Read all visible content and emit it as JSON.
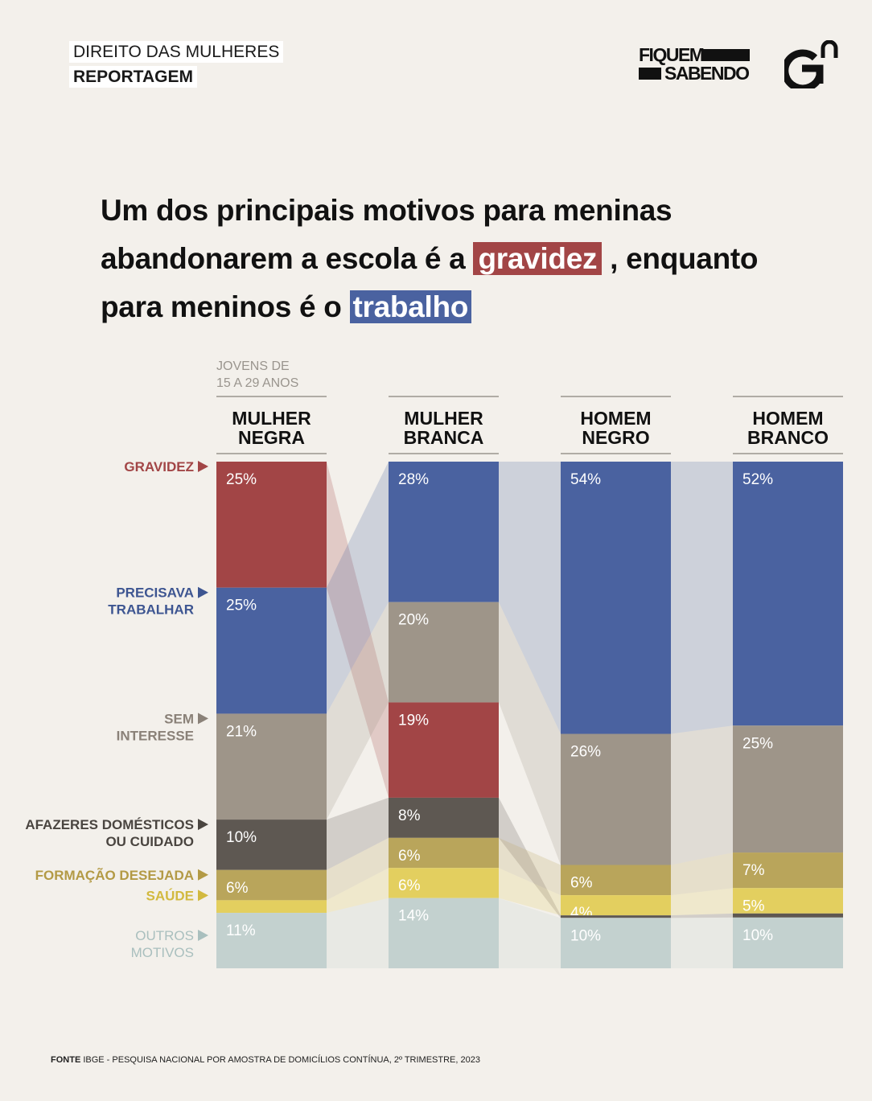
{
  "header": {
    "section": "DIREITO DAS MULHERES",
    "type": "REPORTAGEM",
    "brand_line1": "FIQUEM",
    "brand_line2": "SABENDO"
  },
  "headline": {
    "part1": "Um dos principais motivos para meninas abandonarem a escola é a",
    "highlight1": "gravidez",
    "part2": " , enquanto para meninos é o",
    "highlight2": "trabalho"
  },
  "source": {
    "label": "FONTE",
    "text": "IBGE - PESQUISA NACIONAL POR AMOSTRA DE DOMICÍLIOS CONTÍNUA, 2º TRIMESTRE, 2023"
  },
  "chart_data": {
    "type": "bar",
    "stacked": true,
    "note_lines": [
      "JOVENS DE",
      "15 A 29 ANOS"
    ],
    "categories": [
      [
        "MULHER",
        "NEGRA"
      ],
      [
        "MULHER",
        "BRANCA"
      ],
      [
        "HOMEM",
        "NEGRO"
      ],
      [
        "HOMEM",
        "BRANCO"
      ]
    ],
    "series": [
      {
        "key": "gravidez",
        "name": [
          "GRAVIDEZ"
        ],
        "color": "#a24546",
        "values": [
          25,
          19,
          0,
          0
        ]
      },
      {
        "key": "trabalhar",
        "name": [
          "PRECISAVA",
          "TRABALHAR"
        ],
        "color": "#4a62a0",
        "values": [
          25,
          28,
          54,
          52
        ]
      },
      {
        "key": "interesse",
        "name": [
          "SEM",
          "INTERESSE"
        ],
        "color": "#9e9589",
        "values": [
          21,
          20,
          26,
          25
        ]
      },
      {
        "key": "afazeres",
        "name": [
          "AFAZERES DOMÉSTICOS",
          "OU CUIDADO"
        ],
        "color": "#5e5852",
        "values": [
          10,
          8,
          0.5,
          0.8
        ]
      },
      {
        "key": "formacao",
        "name": [
          "FORMAÇÃO DESEJADA"
        ],
        "color": "#b9a55b",
        "values": [
          6,
          6,
          6,
          7
        ]
      },
      {
        "key": "saude",
        "name": [
          "SAÚDE"
        ],
        "color": "#e3cf5f",
        "values": [
          2.5,
          6,
          4,
          5
        ]
      },
      {
        "key": "outros",
        "name": [
          "OUTROS",
          "MOTIVOS"
        ],
        "color": "#c3d1cf",
        "values": [
          11,
          14,
          10,
          10
        ]
      }
    ],
    "label_colors": {
      "gravidez": "#a24546",
      "trabalhar": "#3d5591",
      "interesse": "#8a8178",
      "afazeres": "#4a4540",
      "formacao": "#b39a45",
      "saude": "#d2b93f",
      "outros": "#a9bfbe"
    },
    "stack_order": {
      "MULHER NEGRA": [
        "gravidez",
        "trabalhar",
        "interesse",
        "afazeres",
        "formacao",
        "saude",
        "outros"
      ],
      "MULHER BRANCA": [
        "trabalhar",
        "interesse",
        "gravidez",
        "afazeres",
        "formacao",
        "saude",
        "outros"
      ],
      "HOMEM NEGRO": [
        "trabalhar",
        "interesse",
        "formacao",
        "saude",
        "afazeres",
        "outros"
      ],
      "HOMEM BRANCO": [
        "trabalhar",
        "interesse",
        "formacao",
        "saude",
        "afazeres",
        "outros"
      ]
    },
    "data_labels": [
      [
        "25%",
        "25%",
        "21%",
        "10%",
        "6%",
        "",
        "11%"
      ],
      [
        "28%",
        "20%",
        "19%",
        "8%",
        "6%",
        "6%",
        "14%"
      ],
      [
        "54%",
        "26%",
        "6%",
        "4%",
        "",
        "10%"
      ],
      [
        "52%",
        "25%",
        "7%",
        "5%",
        "",
        "10%"
      ]
    ],
    "ylim": [
      0,
      100
    ]
  }
}
